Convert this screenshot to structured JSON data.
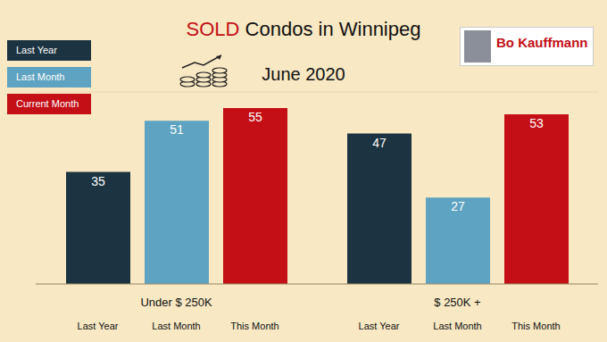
{
  "chart_data": {
    "type": "bar",
    "title": "SOLD Condos in Winnipeg",
    "subtitle": "June 2020",
    "logo": "Bo Kauffmann",
    "categories": [
      "Under $ 250K",
      "$ 250K +"
    ],
    "bar_labels": [
      "Last Year",
      "Last Month",
      "This Month"
    ],
    "series": [
      {
        "name": "Last Year",
        "color": "#1c3441",
        "values": [
          35,
          47
        ]
      },
      {
        "name": "Last Month",
        "color": "#5ea3c1",
        "values": [
          51,
          27
        ]
      },
      {
        "name": "Current Month",
        "color": "#c40f17",
        "values": [
          55,
          53
        ]
      }
    ],
    "ylim": [
      0,
      60
    ],
    "yticks": [
      0,
      10,
      20,
      30,
      40,
      50,
      60
    ],
    "grid": true,
    "data_labels": true,
    "tick_labels": "x",
    "legend": "top-left"
  }
}
